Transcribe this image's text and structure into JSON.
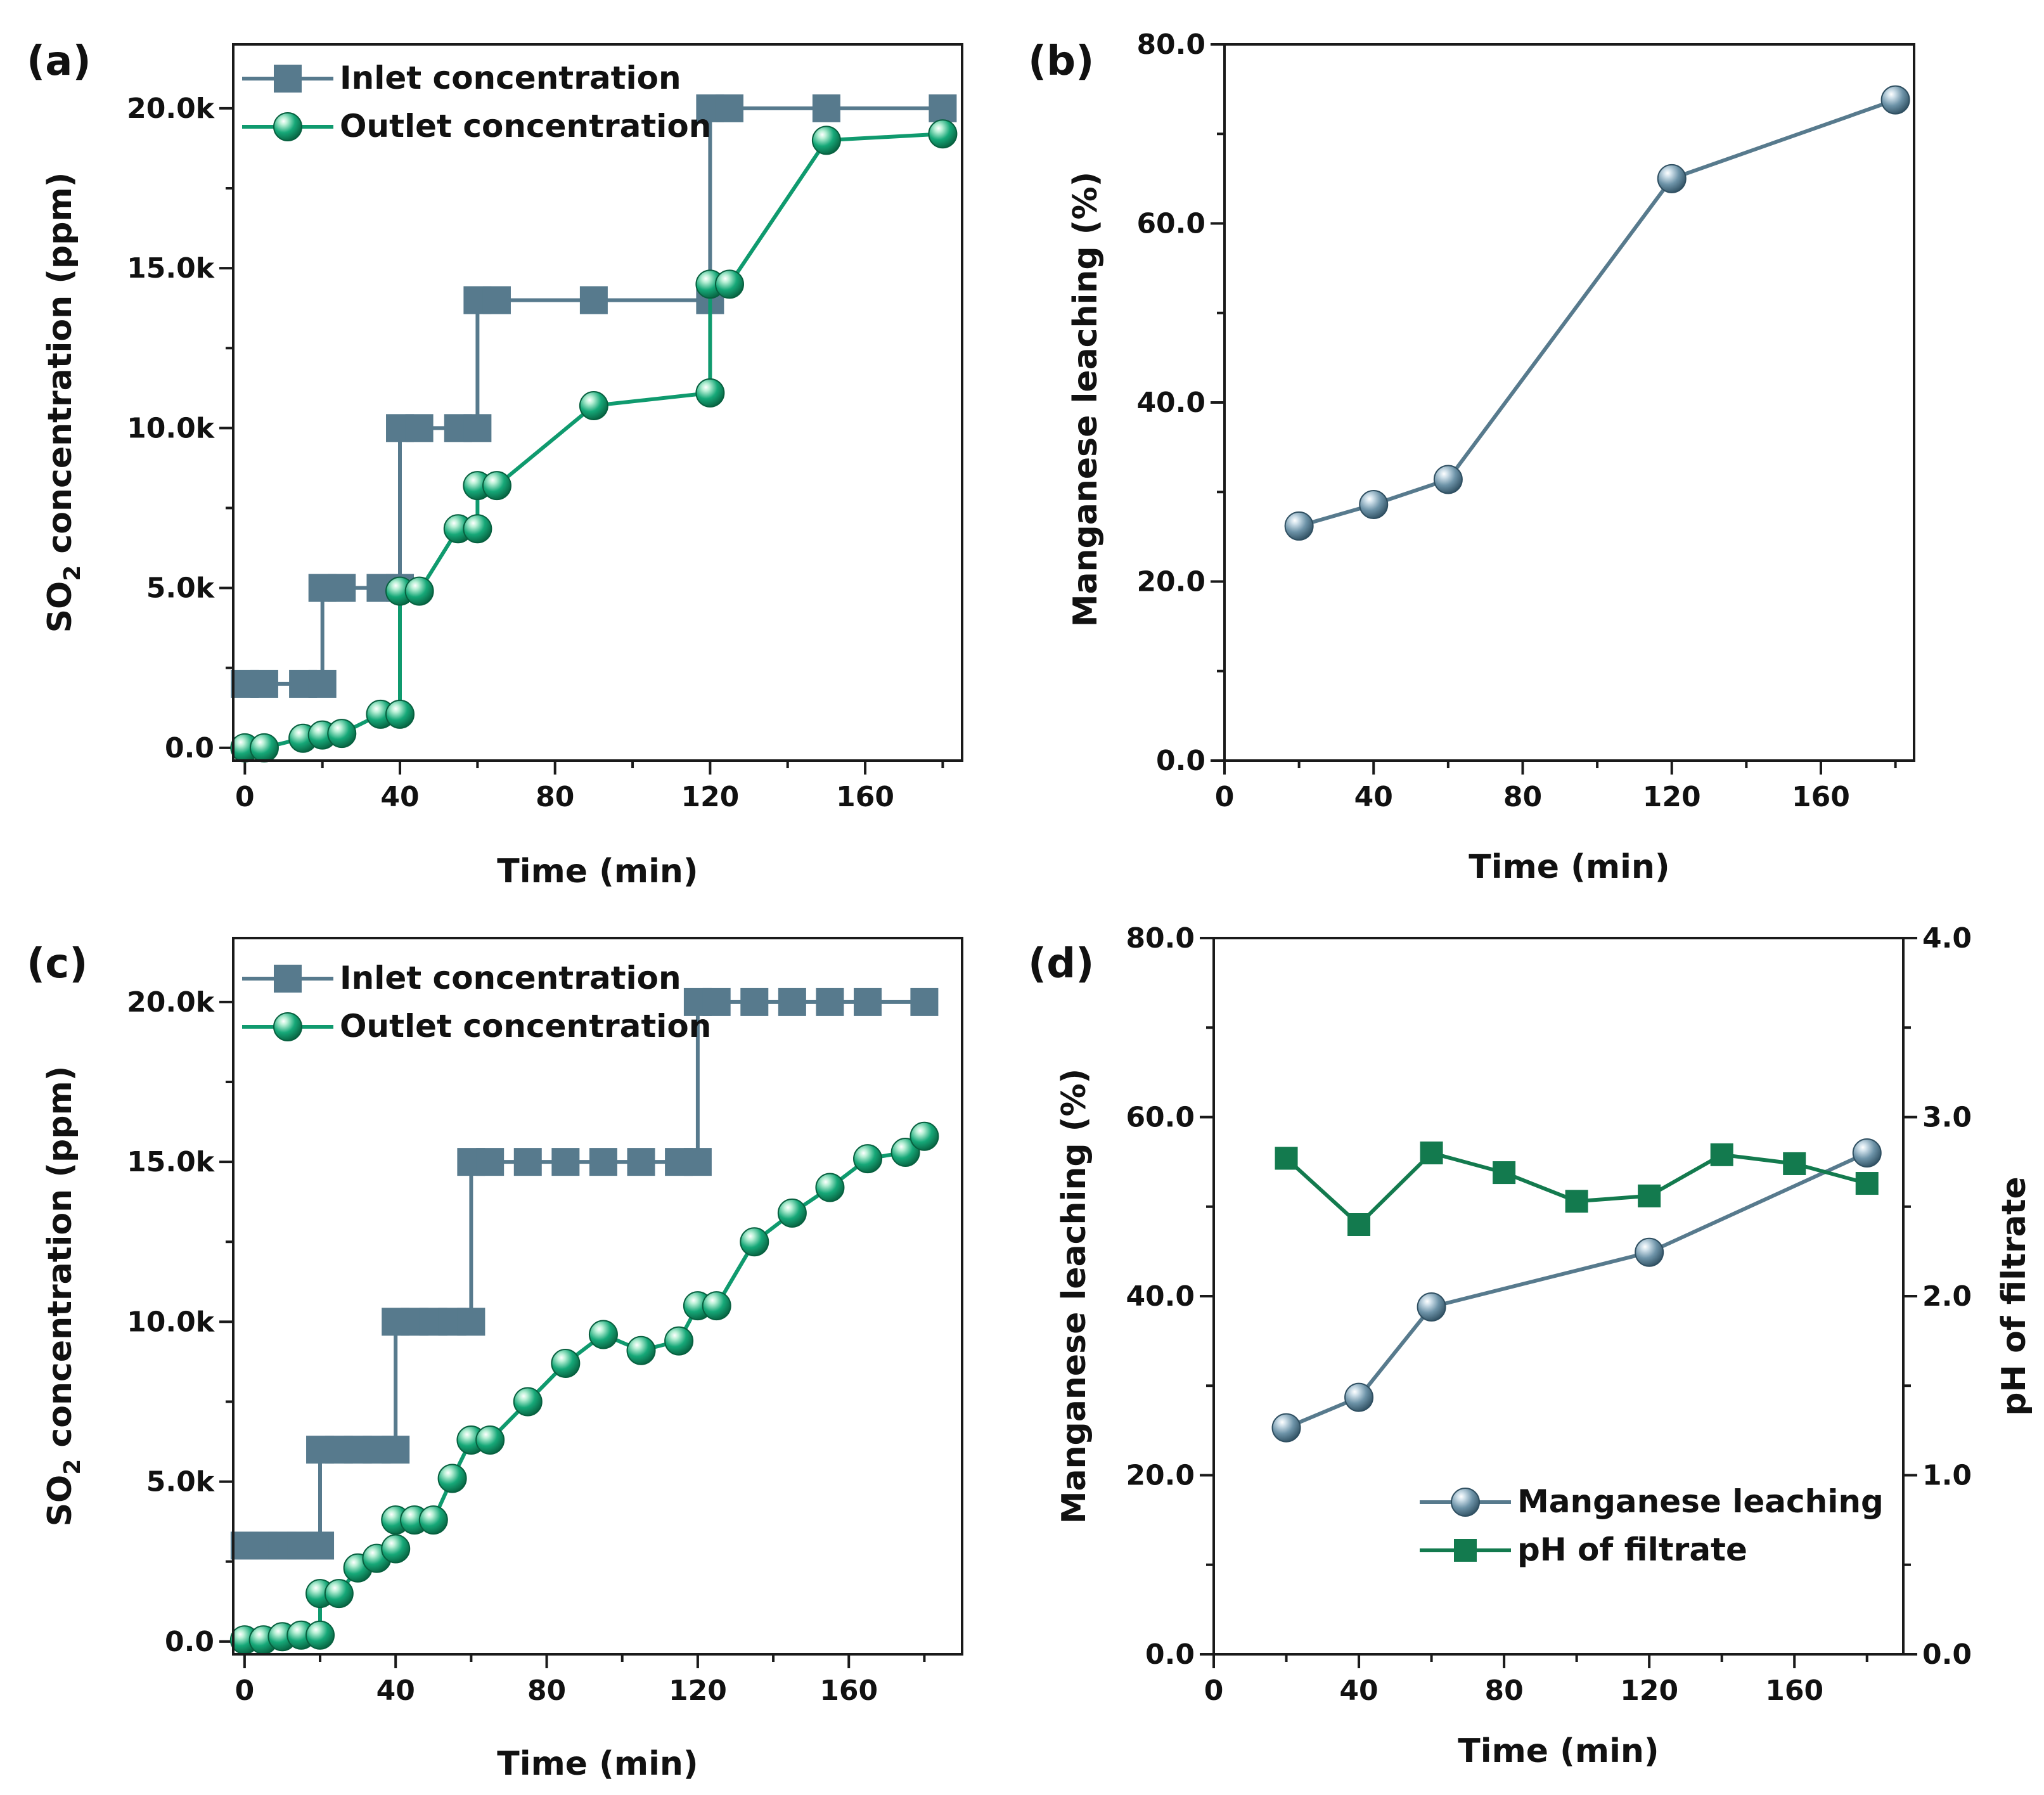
{
  "colors": {
    "steel": "#577a8d",
    "green": "#0f9a6e",
    "dark_green": "#137a4e",
    "axis": "#1a1a1a"
  },
  "chart_data": [
    {
      "id": "a",
      "panel_label": "(a)",
      "type": "line",
      "xlabel": "Time (min)",
      "ylabel": "SO",
      "ylabel_sub": "2",
      "ylabel_rest": " concentration (ppm)",
      "xlim": [
        -3,
        185
      ],
      "ylim": [
        -400,
        22000
      ],
      "xticks": [
        0,
        40,
        80,
        120,
        160
      ],
      "xtick_labels": [
        "0",
        "40",
        "80",
        "120",
        "160"
      ],
      "yticks": [
        0,
        5000,
        10000,
        15000,
        20000
      ],
      "ytick_labels": [
        "0.0",
        "5.0k",
        "10.0k",
        "15.0k",
        "20.0k"
      ],
      "legend": [
        "Inlet concentration",
        "Outlet concentration"
      ],
      "series": [
        {
          "name": "Inlet concentration",
          "marker": "square",
          "color": "#577a8d",
          "x": [
            0,
            5,
            15,
            20,
            20,
            25,
            35,
            40,
            40,
            45,
            55,
            60,
            60,
            65,
            90,
            120,
            120,
            125,
            150,
            180
          ],
          "y": [
            2000,
            2000,
            2000,
            2000,
            5000,
            5000,
            5000,
            5000,
            10000,
            10000,
            10000,
            10000,
            14000,
            14000,
            14000,
            14000,
            20000,
            20000,
            20000,
            20000
          ]
        },
        {
          "name": "Outlet concentration",
          "marker": "circle",
          "color": "#0f9a6e",
          "x": [
            0,
            5,
            15,
            20,
            25,
            35,
            40,
            40,
            45,
            55,
            60,
            60,
            65,
            90,
            120,
            120,
            125,
            150,
            180
          ],
          "y": [
            0,
            0,
            300,
            400,
            450,
            1050,
            1050,
            4900,
            4900,
            6850,
            6850,
            8200,
            8200,
            10700,
            11100,
            14500,
            14500,
            19000,
            19200
          ]
        }
      ]
    },
    {
      "id": "b",
      "panel_label": "(b)",
      "type": "line",
      "xlabel": "Time (min)",
      "ylabel": "Manganese leaching (%)",
      "xlim": [
        0,
        185
      ],
      "ylim": [
        0,
        80
      ],
      "xticks": [
        0,
        40,
        80,
        120,
        160
      ],
      "xtick_labels": [
        "0",
        "40",
        "80",
        "120",
        "160"
      ],
      "yticks": [
        0,
        20,
        40,
        60,
        80
      ],
      "ytick_labels": [
        "0.0",
        "20.0",
        "40.0",
        "60.0",
        "80.0"
      ],
      "legend": [],
      "series": [
        {
          "name": "Manganese leaching",
          "marker": "circle",
          "color": "#577a8d",
          "x": [
            20,
            40,
            60,
            120,
            180
          ],
          "y": [
            26.2,
            28.6,
            31.4,
            65.0,
            73.8
          ]
        }
      ]
    },
    {
      "id": "c",
      "panel_label": "(c)",
      "type": "line",
      "xlabel": "Time (min)",
      "ylabel": "SO",
      "ylabel_sub": "2",
      "ylabel_rest": " concentration (ppm)",
      "xlim": [
        -3,
        190
      ],
      "ylim": [
        -400,
        22000
      ],
      "xticks": [
        0,
        40,
        80,
        120,
        160
      ],
      "xtick_labels": [
        "0",
        "40",
        "80",
        "120",
        "160"
      ],
      "yticks": [
        0,
        5000,
        10000,
        15000,
        20000
      ],
      "ytick_labels": [
        "0.0",
        "5.0k",
        "10.0k",
        "15.0k",
        "20.0k"
      ],
      "legend": [
        "Inlet concentration",
        "Outlet concentration"
      ],
      "series": [
        {
          "name": "Inlet concentration",
          "marker": "square",
          "color": "#577a8d",
          "x": [
            0,
            5,
            10,
            15,
            20,
            20,
            25,
            30,
            35,
            40,
            40,
            45,
            50,
            55,
            60,
            60,
            65,
            75,
            85,
            95,
            105,
            115,
            120,
            120,
            125,
            135,
            145,
            155,
            165,
            180
          ],
          "y": [
            3000,
            3000,
            3000,
            3000,
            3000,
            6000,
            6000,
            6000,
            6000,
            6000,
            10000,
            10000,
            10000,
            10000,
            10000,
            15000,
            15000,
            15000,
            15000,
            15000,
            15000,
            15000,
            15000,
            20000,
            20000,
            20000,
            20000,
            20000,
            20000,
            20000
          ]
        },
        {
          "name": "Outlet concentration",
          "marker": "circle",
          "color": "#0f9a6e",
          "x": [
            0,
            5,
            10,
            15,
            20,
            20,
            25,
            30,
            35,
            40,
            40,
            45,
            50,
            55,
            60,
            65,
            75,
            85,
            95,
            105,
            115,
            120,
            125,
            135,
            145,
            155,
            165,
            175,
            180
          ],
          "y": [
            50,
            50,
            150,
            200,
            200,
            1500,
            1500,
            2300,
            2600,
            2900,
            3800,
            3800,
            3800,
            5100,
            6300,
            6300,
            7500,
            8700,
            9600,
            9100,
            9400,
            10500,
            10500,
            12500,
            13400,
            14200,
            15100,
            15300,
            15800
          ]
        }
      ]
    },
    {
      "id": "d",
      "panel_label": "(d)",
      "type": "line",
      "xlabel": "Time (min)",
      "ylabel": "Manganese leaching (%)",
      "y2label": "pH of filtrate",
      "xlim": [
        0,
        190
      ],
      "ylim": [
        0,
        80
      ],
      "y2lim": [
        0,
        4
      ],
      "xticks": [
        0,
        40,
        80,
        120,
        160
      ],
      "xtick_labels": [
        "0",
        "40",
        "80",
        "120",
        "160"
      ],
      "yticks": [
        0,
        20,
        40,
        60,
        80
      ],
      "ytick_labels": [
        "0.0",
        "20.0",
        "40.0",
        "60.0",
        "80.0"
      ],
      "y2ticks": [
        0,
        1,
        2,
        3,
        4
      ],
      "y2tick_labels": [
        "0.0",
        "1.0",
        "2.0",
        "3.0",
        "4.0"
      ],
      "legend": [
        "Manganese leaching",
        "pH of filtrate"
      ],
      "series": [
        {
          "name": "Manganese leaching",
          "marker": "circle",
          "color": "#577a8d",
          "axis": "left",
          "x": [
            20,
            40,
            60,
            120,
            180
          ],
          "y": [
            25.3,
            28.7,
            38.8,
            44.9,
            56.0
          ]
        },
        {
          "name": "pH of filtrate",
          "marker": "square",
          "color": "#137a4e",
          "axis": "right",
          "x": [
            20,
            40,
            60,
            80,
            100,
            120,
            140,
            160,
            180
          ],
          "y": [
            2.77,
            2.4,
            2.8,
            2.69,
            2.53,
            2.56,
            2.79,
            2.74,
            2.63
          ]
        }
      ]
    }
  ]
}
